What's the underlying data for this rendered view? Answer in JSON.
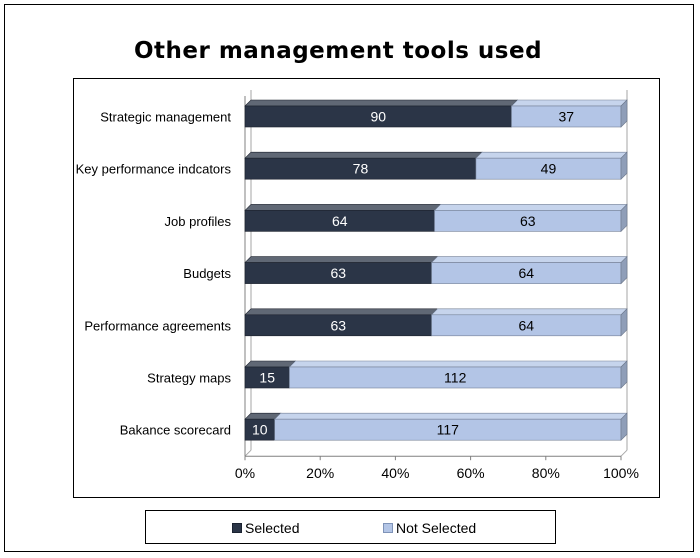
{
  "chart_data": {
    "type": "bar",
    "orientation": "horizontal",
    "stacked": "percent",
    "title": "Other management tools used",
    "categories": [
      "Strategic management",
      "Key performance indcators",
      "Job profiles",
      "Budgets",
      "Performance agreements",
      "Strategy maps",
      "Bakance scorecard"
    ],
    "series": [
      {
        "name": "Selected",
        "values": [
          90,
          78,
          64,
          63,
          63,
          15,
          10
        ],
        "color": "#2b3547"
      },
      {
        "name": "Not Selected",
        "values": [
          37,
          49,
          63,
          64,
          64,
          112,
          117
        ],
        "color": "#b3c5e6"
      }
    ],
    "x_ticks": [
      "0%",
      "20%",
      "40%",
      "60%",
      "80%",
      "100%"
    ],
    "xlim": [
      0,
      100
    ],
    "grid": false,
    "legend": "bottom"
  },
  "colors": {
    "selected": "#2b3547",
    "not_selected": "#b3c5e6"
  }
}
